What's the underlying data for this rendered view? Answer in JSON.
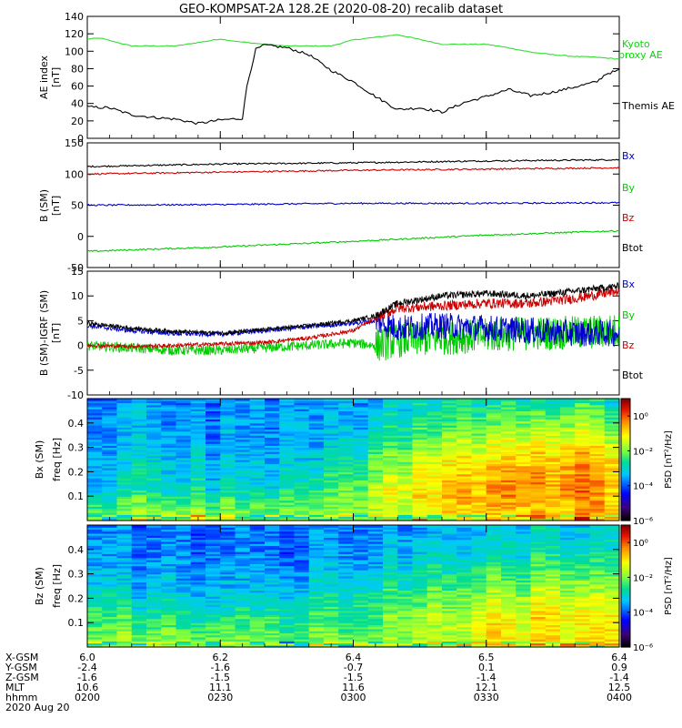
{
  "title": "GEO-KOMPSAT-2A 128.2E (2020-08-20) recalib dataset",
  "chart_data": [
    {
      "type": "line",
      "ylabel": "AE index",
      "yunit": "[nT]",
      "ylim": [
        0,
        140
      ],
      "yticks": [
        0,
        20,
        40,
        60,
        80,
        100,
        120,
        140
      ],
      "xlim": [
        0,
        120
      ],
      "legend": [
        {
          "label": "Kyoto proxy AE",
          "line1": "Kyoto",
          "line2": "proxy AE",
          "color": "#00dd00"
        },
        {
          "label": "Themis AE",
          "color": "#000000"
        }
      ],
      "series": [
        {
          "name": "Kyoto proxy AE",
          "color": "#33dd33",
          "x": [
            0,
            3,
            6,
            10,
            20,
            30,
            34,
            40,
            45,
            50,
            55,
            60,
            70,
            80,
            86,
            90,
            95,
            100,
            105,
            110,
            115,
            120
          ],
          "y": [
            114,
            115,
            111,
            106,
            106,
            114,
            111,
            108,
            106,
            106,
            106,
            113,
            119,
            108,
            108,
            108,
            104,
            99,
            96,
            94,
            93,
            91
          ]
        },
        {
          "name": "Themis AE",
          "color": "#000000",
          "x": [
            0,
            5,
            10,
            15,
            20,
            25,
            30,
            35,
            36,
            38,
            40,
            45,
            50,
            55,
            60,
            65,
            70,
            75,
            80,
            85,
            90,
            95,
            100,
            105,
            110,
            115,
            117,
            120
          ],
          "y": [
            36,
            35,
            27,
            24,
            22,
            17,
            21,
            23,
            60,
            102,
            107,
            104,
            96,
            78,
            65,
            48,
            33,
            35,
            30,
            41,
            48,
            56,
            49,
            53,
            59,
            65,
            74,
            78
          ]
        }
      ]
    },
    {
      "type": "line",
      "ylabel": "B (SM)",
      "yunit": "[nT]",
      "ylim": [
        -50,
        150
      ],
      "yticks": [
        -50,
        0,
        50,
        100,
        150
      ],
      "xlim": [
        0,
        120
      ],
      "legend": [
        {
          "label": "Bx",
          "color": "#0000cc"
        },
        {
          "label": "By",
          "color": "#00cc00"
        },
        {
          "label": "Bz",
          "color": "#cc0000"
        },
        {
          "label": "Btot",
          "color": "#000000"
        }
      ],
      "series": [
        {
          "name": "Btot",
          "color": "#000000",
          "x": [
            0,
            30,
            60,
            90,
            120
          ],
          "y": [
            112,
            116,
            118,
            121,
            123
          ]
        },
        {
          "name": "Bz",
          "color": "#cc0000",
          "x": [
            0,
            30,
            60,
            90,
            120
          ],
          "y": [
            100,
            103,
            106,
            108,
            110
          ]
        },
        {
          "name": "Bx",
          "color": "#0000cc",
          "x": [
            0,
            30,
            60,
            90,
            120
          ],
          "y": [
            50,
            51,
            53,
            53,
            54
          ]
        },
        {
          "name": "By",
          "color": "#00cc00",
          "x": [
            0,
            30,
            60,
            90,
            120
          ],
          "y": [
            -24,
            -17,
            -8,
            2,
            9
          ]
        }
      ]
    },
    {
      "type": "line",
      "ylabel": "B (SM)-IGRF (SM)",
      "yunit": "[nT]",
      "ylim": [
        -10,
        15
      ],
      "yticks": [
        -10,
        -5,
        0,
        5,
        10,
        15
      ],
      "xlim": [
        0,
        120
      ],
      "legend": [
        {
          "label": "Bx",
          "color": "#0000cc"
        },
        {
          "label": "By",
          "color": "#00cc00"
        },
        {
          "label": "Bz",
          "color": "#cc0000"
        },
        {
          "label": "Btot",
          "color": "#000000"
        }
      ],
      "series": [
        {
          "name": "Btot",
          "color": "#000000",
          "x": [
            0,
            10,
            20,
            30,
            40,
            50,
            60,
            65,
            70,
            80,
            90,
            100,
            110,
            120
          ],
          "y": [
            4.5,
            3.5,
            2.8,
            2.5,
            3.2,
            4.0,
            5.0,
            6.0,
            8.5,
            10.0,
            10.5,
            10.0,
            11.0,
            12.0
          ]
        },
        {
          "name": "Bx",
          "color": "#0000cc",
          "x": [
            0,
            10,
            20,
            30,
            40,
            50,
            60,
            65,
            70,
            80,
            90,
            100,
            110,
            120
          ],
          "y": [
            4.0,
            3.0,
            2.4,
            2.3,
            3.0,
            3.8,
            4.5,
            5.0,
            3.5,
            4.0,
            3.5,
            3.0,
            2.5,
            2.5
          ]
        },
        {
          "name": "Bz",
          "color": "#cc0000",
          "x": [
            0,
            10,
            20,
            30,
            40,
            50,
            60,
            65,
            70,
            80,
            90,
            100,
            110,
            120
          ],
          "y": [
            0,
            -0.2,
            0.0,
            0.3,
            0.6,
            1.5,
            3.0,
            5.5,
            7.5,
            8.0,
            8.5,
            8.5,
            9.5,
            11.0
          ]
        },
        {
          "name": "By",
          "color": "#00cc00",
          "x": [
            0,
            10,
            20,
            30,
            40,
            50,
            60,
            65,
            70,
            80,
            90,
            100,
            110,
            120
          ],
          "y": [
            0,
            -0.5,
            -1.0,
            -1.0,
            -0.5,
            0.0,
            0.5,
            0.0,
            1.0,
            1.5,
            2.0,
            2.5,
            2.5,
            3.0
          ]
        }
      ]
    },
    {
      "type": "heatmap",
      "ylabel": "Bx (SM)",
      "yunit": "freq [Hz]",
      "ylim": [
        0,
        0.5
      ],
      "yticks": [
        0.1,
        0.2,
        0.3,
        0.4
      ],
      "ytick_labels": [
        "0.1",
        "0.2",
        "0.3",
        "0.4"
      ],
      "colorbar_label": "PSD [nT²/Hz]",
      "colorbar_ticks": [
        "10⁰",
        "10⁻²",
        "10⁻⁴",
        "10⁻⁶"
      ],
      "colorbar_log_range": [
        -6,
        1
      ],
      "log_psd": [
        [
          -1.6,
          -3.0,
          -3.2,
          -3.4,
          -3.5
        ],
        [
          -1.4,
          -2.8,
          -3.2,
          -3.5,
          -3.6
        ],
        [
          -1.5,
          -2.9,
          -3.3,
          -3.6,
          -3.7
        ],
        [
          -1.7,
          -3.0,
          -3.4,
          -3.6,
          -3.6
        ],
        [
          -1.8,
          -2.4,
          -3.0,
          -3.4,
          -3.5
        ],
        [
          -1.7,
          -1.6,
          -2.2,
          -3.0,
          -3.4
        ],
        [
          -1.2,
          -0.9,
          -1.4,
          -2.4,
          -3.0
        ],
        [
          -0.6,
          -0.3,
          -0.7,
          -1.7,
          -2.7
        ],
        [
          -0.8,
          -0.3,
          -0.5,
          -1.5,
          -2.7
        ],
        [
          -0.6,
          -0.4,
          -0.7,
          -1.8,
          -2.8
        ]
      ]
    },
    {
      "type": "heatmap",
      "ylabel": "Bz (SM)",
      "yunit": "freq [Hz]",
      "ylim": [
        0,
        0.5
      ],
      "yticks": [
        0.1,
        0.2,
        0.3,
        0.4
      ],
      "ytick_labels": [
        "0.1",
        "0.2",
        "0.3",
        "0.4"
      ],
      "colorbar_label": "PSD [nT²/Hz]",
      "colorbar_ticks": [
        "10⁰",
        "10⁻²",
        "10⁻⁴",
        "10⁻⁶"
      ],
      "colorbar_log_range": [
        -6,
        1
      ],
      "log_psd": [
        [
          -1.8,
          -2.4,
          -3.2,
          -3.6,
          -3.8
        ],
        [
          -1.6,
          -2.6,
          -3.3,
          -3.7,
          -3.8
        ],
        [
          -1.7,
          -2.7,
          -3.4,
          -3.7,
          -3.8
        ],
        [
          -1.9,
          -2.6,
          -3.3,
          -3.8,
          -3.8
        ],
        [
          -2.0,
          -2.6,
          -3.2,
          -3.7,
          -3.8
        ],
        [
          -1.9,
          -2.2,
          -2.8,
          -3.5,
          -3.6
        ],
        [
          -1.5,
          -1.6,
          -2.3,
          -3.0,
          -3.4
        ],
        [
          -1.0,
          -1.1,
          -2.0,
          -2.8,
          -3.2
        ],
        [
          -1.1,
          -1.0,
          -1.8,
          -2.8,
          -3.3
        ],
        [
          -1.0,
          -1.2,
          -2.0,
          -2.9,
          -3.3
        ]
      ]
    }
  ],
  "x_axis": {
    "row_labels": [
      "X-GSM",
      "Y-GSM",
      "Z-GSM",
      "MLT",
      "hhmm"
    ],
    "columns": [
      [
        "6.0",
        "-2.4",
        "-1.6",
        "10.6",
        "0200"
      ],
      [
        "6.2",
        "-1.6",
        "-1.5",
        "11.1",
        "0230"
      ],
      [
        "6.4",
        "-0.7",
        "-1.5",
        "11.6",
        "0300"
      ],
      [
        "6.5",
        "0.1",
        "-1.4",
        "12.1",
        "0330"
      ],
      [
        "6.4",
        "0.9",
        "-1.4",
        "12.5",
        "0400"
      ]
    ],
    "date": "2020 Aug 20"
  }
}
